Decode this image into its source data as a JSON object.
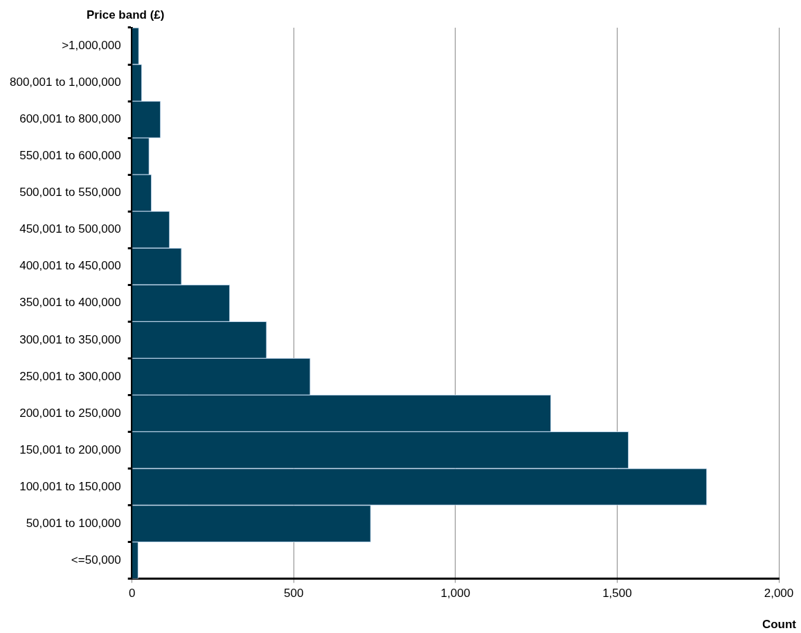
{
  "chart_data": {
    "type": "bar",
    "orientation": "horizontal",
    "ylabel": "Price band (£)",
    "xlabel": "Count",
    "categories": [
      ">1,000,000",
      "800,001 to 1,000,000",
      "600,001 to 800,000",
      "550,001 to 600,000",
      "500,001 to 550,000",
      "450,001 to 500,000",
      "400,001 to 450,000",
      "350,001 to 400,000",
      "300,001 to 350,000",
      "250,001 to 300,000",
      "200,001 to 250,000",
      "150,001 to 200,000",
      "100,001 to 150,000",
      "50,001 to 100,000",
      "<=50,000"
    ],
    "values": [
      21,
      30,
      88,
      53,
      60,
      116,
      153,
      302,
      416,
      551,
      1295,
      1535,
      1777,
      738,
      19
    ],
    "color": "#003f5a",
    "xlim": [
      0,
      2000
    ],
    "xticks": [
      0,
      {
        "value": 500,
        "label": "500"
      },
      {
        "value": 1000,
        "label": "1,000"
      },
      {
        "value": 1500,
        "label": "1,500"
      },
      {
        "value": 2000,
        "label": "2,000"
      }
    ],
    "grid": "x",
    "legend": false
  }
}
